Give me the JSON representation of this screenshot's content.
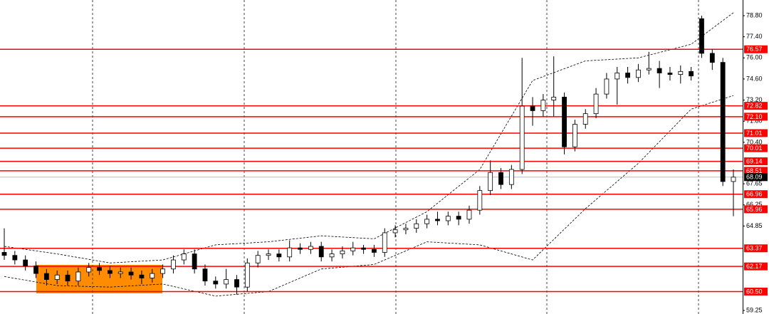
{
  "chart_data": {
    "type": "candlestick",
    "ylim": [
      59.25,
      78.8
    ],
    "yticks": [
      {
        "value": 78.8,
        "label": "78.80"
      },
      {
        "value": 77.4,
        "label": "77.40"
      },
      {
        "value": 76,
        "label": "76.00"
      },
      {
        "value": 74.6,
        "label": "74.60"
      },
      {
        "value": 73.2,
        "label": "73.20"
      },
      {
        "value": 71.8,
        "label": "71.80"
      },
      {
        "value": 70.4,
        "label": "70.40"
      },
      {
        "value": 67.65,
        "label": "67.65"
      },
      {
        "value": 66.25,
        "label": "66.25"
      },
      {
        "value": 64.85,
        "label": "64.85"
      },
      {
        "value": 59.25,
        "label": "59.25"
      }
    ],
    "up_color": "#ffffff",
    "down_color": "#000000",
    "open": [
      63.1,
      62.9,
      62.6,
      62.2,
      61.7,
      61.3,
      61.6,
      61.2,
      61.8,
      62.1,
      61.9,
      61.7,
      61.8,
      61.6,
      61.4,
      61.7,
      62.0,
      62.6,
      63.0,
      62.0,
      61.2,
      61.0,
      61.3,
      60.8,
      62.4,
      62.9,
      63.0,
      62.8,
      63.4,
      63.3,
      63.5,
      62.8,
      63.0,
      63.2,
      63.4,
      63.3,
      63.1,
      64.4,
      64.6,
      64.7,
      65.0,
      65.3,
      65.2,
      65.5,
      65.3,
      65.9,
      67.2,
      68.4,
      67.6,
      68.6,
      72.8,
      72.5,
      73.2,
      73.4,
      70.1,
      71.6,
      72.3,
      73.6,
      74.6,
      75.0,
      74.7,
      75.2,
      75.3,
      75.0,
      74.9,
      75.1,
      78.6,
      76.3,
      75.7,
      67.8
    ],
    "high": [
      64.7,
      63.2,
      62.9,
      62.5,
      62.0,
      61.9,
      61.9,
      62.1,
      62.4,
      62.4,
      62.2,
      62.1,
      62.1,
      61.9,
      62.0,
      62.3,
      62.9,
      63.3,
      63.3,
      62.3,
      61.5,
      62.0,
      61.6,
      62.7,
      63.2,
      63.3,
      63.3,
      63.9,
      63.7,
      63.8,
      63.8,
      63.3,
      63.5,
      63.8,
      63.6,
      63.6,
      64.7,
      64.9,
      65.0,
      65.3,
      65.6,
      65.8,
      65.8,
      65.8,
      66.2,
      67.5,
      69.2,
      68.7,
      68.9,
      76.0,
      73.4,
      73.6,
      76.1,
      73.7,
      71.9,
      72.6,
      74.0,
      75.0,
      75.4,
      75.4,
      75.6,
      76.4,
      75.8,
      75.4,
      75.5,
      75.4,
      78.8,
      76.6,
      76.0,
      68.6
    ],
    "low": [
      62.6,
      62.3,
      61.9,
      61.4,
      60.9,
      61.0,
      60.9,
      60.9,
      61.5,
      61.6,
      61.4,
      61.4,
      61.3,
      61.0,
      61.1,
      61.4,
      61.7,
      62.3,
      61.7,
      60.9,
      60.7,
      60.7,
      60.3,
      60.5,
      62.1,
      62.6,
      62.5,
      62.5,
      63.0,
      63.0,
      62.5,
      62.5,
      62.7,
      62.9,
      63.0,
      62.8,
      62.8,
      64.1,
      64.3,
      64.4,
      64.7,
      64.9,
      64.9,
      64.9,
      65.0,
      65.6,
      66.9,
      67.3,
      67.3,
      68.3,
      71.5,
      72.1,
      72.1,
      69.6,
      69.8,
      71.3,
      72.0,
      73.3,
      72.9,
      74.3,
      74.4,
      74.9,
      74.0,
      74.5,
      74.3,
      74.5,
      76.0,
      75.2,
      67.5,
      65.5
    ],
    "close": [
      62.9,
      62.6,
      62.2,
      61.7,
      61.3,
      61.6,
      61.2,
      61.8,
      62.1,
      61.9,
      61.7,
      61.8,
      61.6,
      61.4,
      61.7,
      62.0,
      62.6,
      63.0,
      62.0,
      61.2,
      61.0,
      61.3,
      60.8,
      62.4,
      62.9,
      63.0,
      62.8,
      63.4,
      63.3,
      63.5,
      62.8,
      63.0,
      63.2,
      63.4,
      63.3,
      63.1,
      64.4,
      64.6,
      64.7,
      65.0,
      65.3,
      65.2,
      65.5,
      65.3,
      65.9,
      67.2,
      68.4,
      67.6,
      68.6,
      72.8,
      72.5,
      73.2,
      73.4,
      70.1,
      71.6,
      72.3,
      73.6,
      74.6,
      75.0,
      74.7,
      75.2,
      75.3,
      75.0,
      74.9,
      75.1,
      74.8,
      76.3,
      75.7,
      67.8,
      68.09
    ],
    "bands": {
      "at": [
        0,
        5,
        10,
        15,
        20,
        25,
        30,
        35,
        40,
        45,
        50,
        55,
        60,
        65,
        69
      ],
      "color": "#000000",
      "upper": [
        63.5,
        63.0,
        62.4,
        62.6,
        63.6,
        63.8,
        64.2,
        64.0,
        65.8,
        68.6,
        74.5,
        75.8,
        76.0,
        76.9,
        79.0
      ],
      "lower": [
        61.5,
        60.9,
        60.8,
        61.0,
        60.2,
        60.5,
        62.0,
        62.3,
        63.8,
        63.6,
        62.6,
        66.0,
        69.0,
        72.6,
        73.5
      ]
    },
    "levels": {
      "color": "#ff0000",
      "values": [
        76.57,
        72.82,
        {
          "value": 72.1,
          "label": "72.10"
        },
        71.01,
        70.01,
        69.14,
        68.51,
        66.96,
        65.96,
        63.37,
        62.17,
        {
          "value": 60.5,
          "label": "60.50"
        }
      ]
    },
    "current_price": 68.09
  }
}
